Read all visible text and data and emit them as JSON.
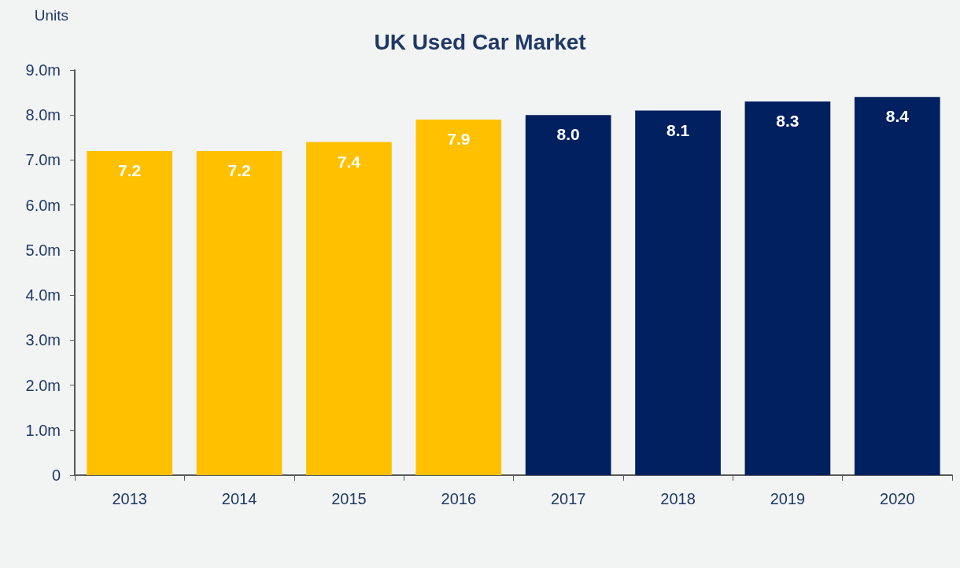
{
  "chart_data": {
    "type": "bar",
    "title": "UK Used Car Market",
    "ylabel": "Units",
    "categories": [
      "2013",
      "2014",
      "2015",
      "2016",
      "2017",
      "2018",
      "2019",
      "2020"
    ],
    "values": [
      7.2,
      7.2,
      7.4,
      7.9,
      8.0,
      8.1,
      8.3,
      8.4
    ],
    "value_labels": [
      "7.2",
      "7.2",
      "7.4",
      "7.9",
      "8.0",
      "8.1",
      "8.3",
      "8.4"
    ],
    "colors": [
      "#ffc000",
      "#ffc000",
      "#ffc000",
      "#ffc000",
      "#002060",
      "#002060",
      "#002060",
      "#002060"
    ],
    "ylim": [
      0,
      9
    ],
    "yticks": [
      0,
      {
        "value": 1,
        "label": "1.0m"
      },
      {
        "value": 2,
        "label": "2.0m"
      },
      {
        "value": 3,
        "label": "3.0m"
      },
      {
        "value": 4,
        "label": "4.0m"
      },
      {
        "value": 5,
        "label": "5.0m"
      },
      {
        "value": 6,
        "label": "6.0m"
      },
      {
        "value": 7,
        "label": "7.0m"
      },
      {
        "value": 8,
        "label": "8.0m"
      },
      {
        "value": 9,
        "label": "9.0m"
      }
    ],
    "grid": false
  }
}
